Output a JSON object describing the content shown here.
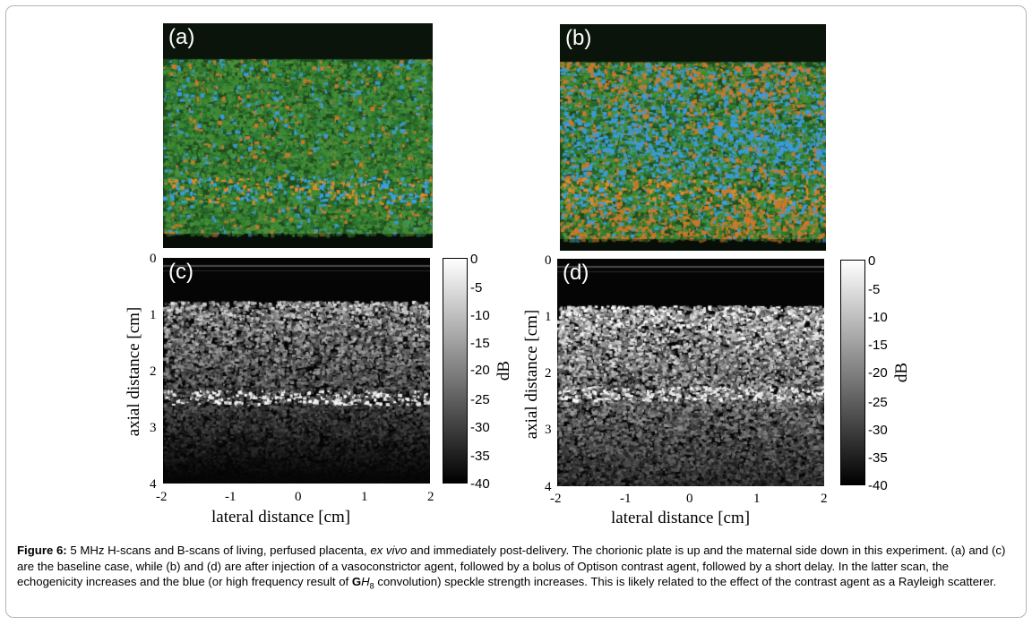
{
  "panels": {
    "a": {
      "label": "(a)"
    },
    "b": {
      "label": "(b)"
    },
    "c": {
      "label": "(c)"
    },
    "d": {
      "label": "(d)"
    }
  },
  "axes": {
    "ylabel": "axial distance [cm]",
    "xlabel": "lateral distance [cm]",
    "yticks": [
      "0",
      "1",
      "2",
      "3",
      "4"
    ],
    "xticks": [
      "-2",
      "-1",
      "0",
      "1",
      "2"
    ]
  },
  "colorbar": {
    "ticks": [
      "0",
      "-5",
      "-10",
      "-15",
      "-20",
      "-25",
      "-30",
      "-35",
      "-40"
    ],
    "unit": "dB",
    "range": [
      -40,
      0
    ]
  },
  "caption": {
    "label": "Figure 6:",
    "part1": " 5 MHz H-scans and B-scans of living, perfused placenta, ",
    "italic": "ex vivo",
    "part2": " and immediately post-delivery. The chorionic plate is up and the maternal side down in this experiment. (a) and (c) are the baseline case, while (b) and (d) are after injection of a vasoconstrictor agent, followed by a bolus of Optison contrast agent, followed by a short delay. In the latter scan, the echogenicity increases and the blue (or high frequency result of ",
    "gh_bold": "G",
    "gh_italic": "H",
    "gh_sub": "8",
    "part3": " convolution) speckle strength increases. This is likely related to the effect of the contrast agent as a Rayleigh scatterer."
  }
}
